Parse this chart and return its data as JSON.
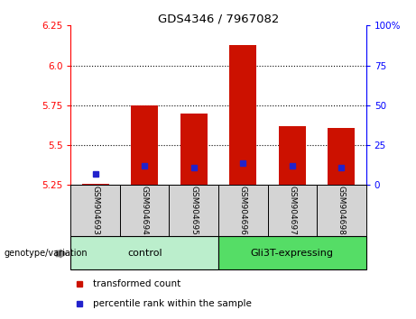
{
  "title": "GDS4346 / 7967082",
  "samples": [
    "GSM904693",
    "GSM904694",
    "GSM904695",
    "GSM904696",
    "GSM904697",
    "GSM904698"
  ],
  "transformed_counts": [
    5.26,
    5.75,
    5.7,
    6.13,
    5.62,
    5.61
  ],
  "percentile_ranks": [
    5.32,
    5.37,
    5.36,
    5.39,
    5.37,
    5.36
  ],
  "ylim_left": [
    5.25,
    6.25
  ],
  "ylim_right": [
    0,
    100
  ],
  "yticks_left": [
    5.25,
    5.5,
    5.75,
    6.0,
    6.25
  ],
  "yticks_right": [
    0,
    25,
    50,
    75,
    100
  ],
  "ytick_labels_right": [
    "0",
    "25",
    "50",
    "75",
    "100%"
  ],
  "bar_base": 5.25,
  "bar_color": "#cc1100",
  "percentile_color": "#2222cc",
  "grid_color": "black",
  "plot_bg": "#ffffff",
  "group_labels": [
    "control",
    "Gli3T-expressing"
  ],
  "group_sample_counts": [
    3,
    3
  ],
  "group_colors": [
    "#bbeecc",
    "#55dd66"
  ],
  "genotype_label": "genotype/variation",
  "legend_items": [
    "transformed count",
    "percentile rank within the sample"
  ],
  "legend_colors": [
    "#cc1100",
    "#2222cc"
  ],
  "sample_box_color": "#d4d4d4",
  "grid_lines_at": [
    6.0,
    5.75,
    5.5
  ]
}
